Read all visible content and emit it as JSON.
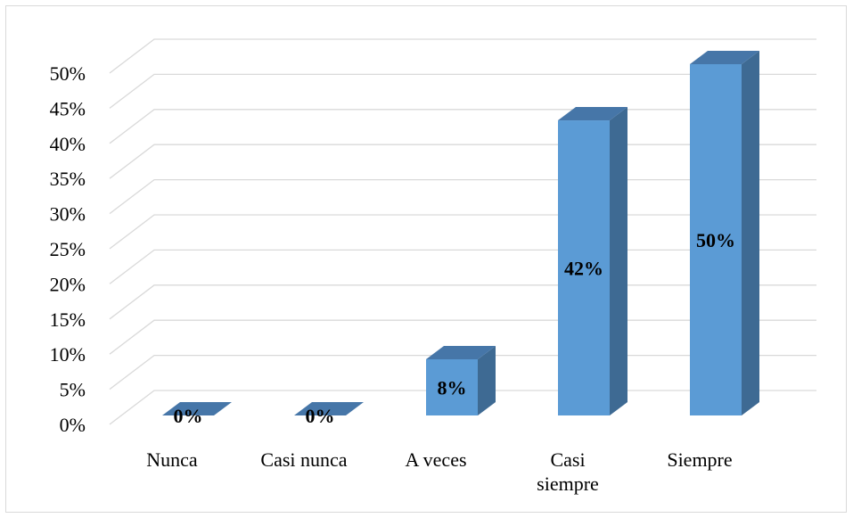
{
  "chart_data": {
    "type": "bar",
    "categories": [
      "Nunca",
      "Casi nunca",
      "A veces",
      "Casi siempre",
      "Siempre"
    ],
    "category_lines": [
      [
        "Nunca"
      ],
      [
        "Casi nunca"
      ],
      [
        "A veces"
      ],
      [
        "Casi",
        "siempre"
      ],
      [
        "Siempre"
      ]
    ],
    "values": [
      0,
      0,
      8,
      42,
      50
    ],
    "data_labels": [
      "0%",
      "0%",
      "8%",
      "42%",
      "50%"
    ],
    "yticks": [
      "0%",
      "5%",
      "10%",
      "15%",
      "20%",
      "25%",
      "30%",
      "35%",
      "40%",
      "45%",
      "50%"
    ],
    "ylim": [
      0,
      50
    ],
    "grid": true,
    "style": "3d-column",
    "colors": {
      "front": "#5b9bd5",
      "side": "#3e6a93",
      "top": "#4676a8",
      "grid": "#d9d9d9"
    }
  }
}
